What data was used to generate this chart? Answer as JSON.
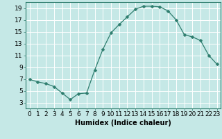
{
  "x": [
    0,
    1,
    2,
    3,
    4,
    5,
    6,
    7,
    8,
    9,
    10,
    11,
    12,
    13,
    14,
    15,
    16,
    17,
    18,
    19,
    20,
    21,
    22,
    23
  ],
  "y": [
    6.9,
    6.5,
    6.2,
    5.7,
    4.6,
    3.5,
    4.5,
    4.6,
    8.5,
    12.0,
    14.8,
    16.2,
    17.5,
    18.8,
    19.3,
    19.3,
    19.2,
    18.5,
    17.0,
    14.5,
    14.1,
    13.5,
    11.0,
    9.5
  ],
  "line_color": "#2e7d6e",
  "marker": "D",
  "marker_size": 2.5,
  "bg_color": "#c5e8e6",
  "grid_color": "#ffffff",
  "xlabel": "Humidex (Indice chaleur)",
  "xlim": [
    -0.5,
    23.5
  ],
  "ylim": [
    2.0,
    20.0
  ],
  "yticks": [
    3,
    5,
    7,
    9,
    11,
    13,
    15,
    17,
    19
  ],
  "xticks": [
    0,
    1,
    2,
    3,
    4,
    5,
    6,
    7,
    8,
    9,
    10,
    11,
    12,
    13,
    14,
    15,
    16,
    17,
    18,
    19,
    20,
    21,
    22,
    23
  ],
  "xlabel_fontsize": 7,
  "tick_fontsize": 6.5
}
